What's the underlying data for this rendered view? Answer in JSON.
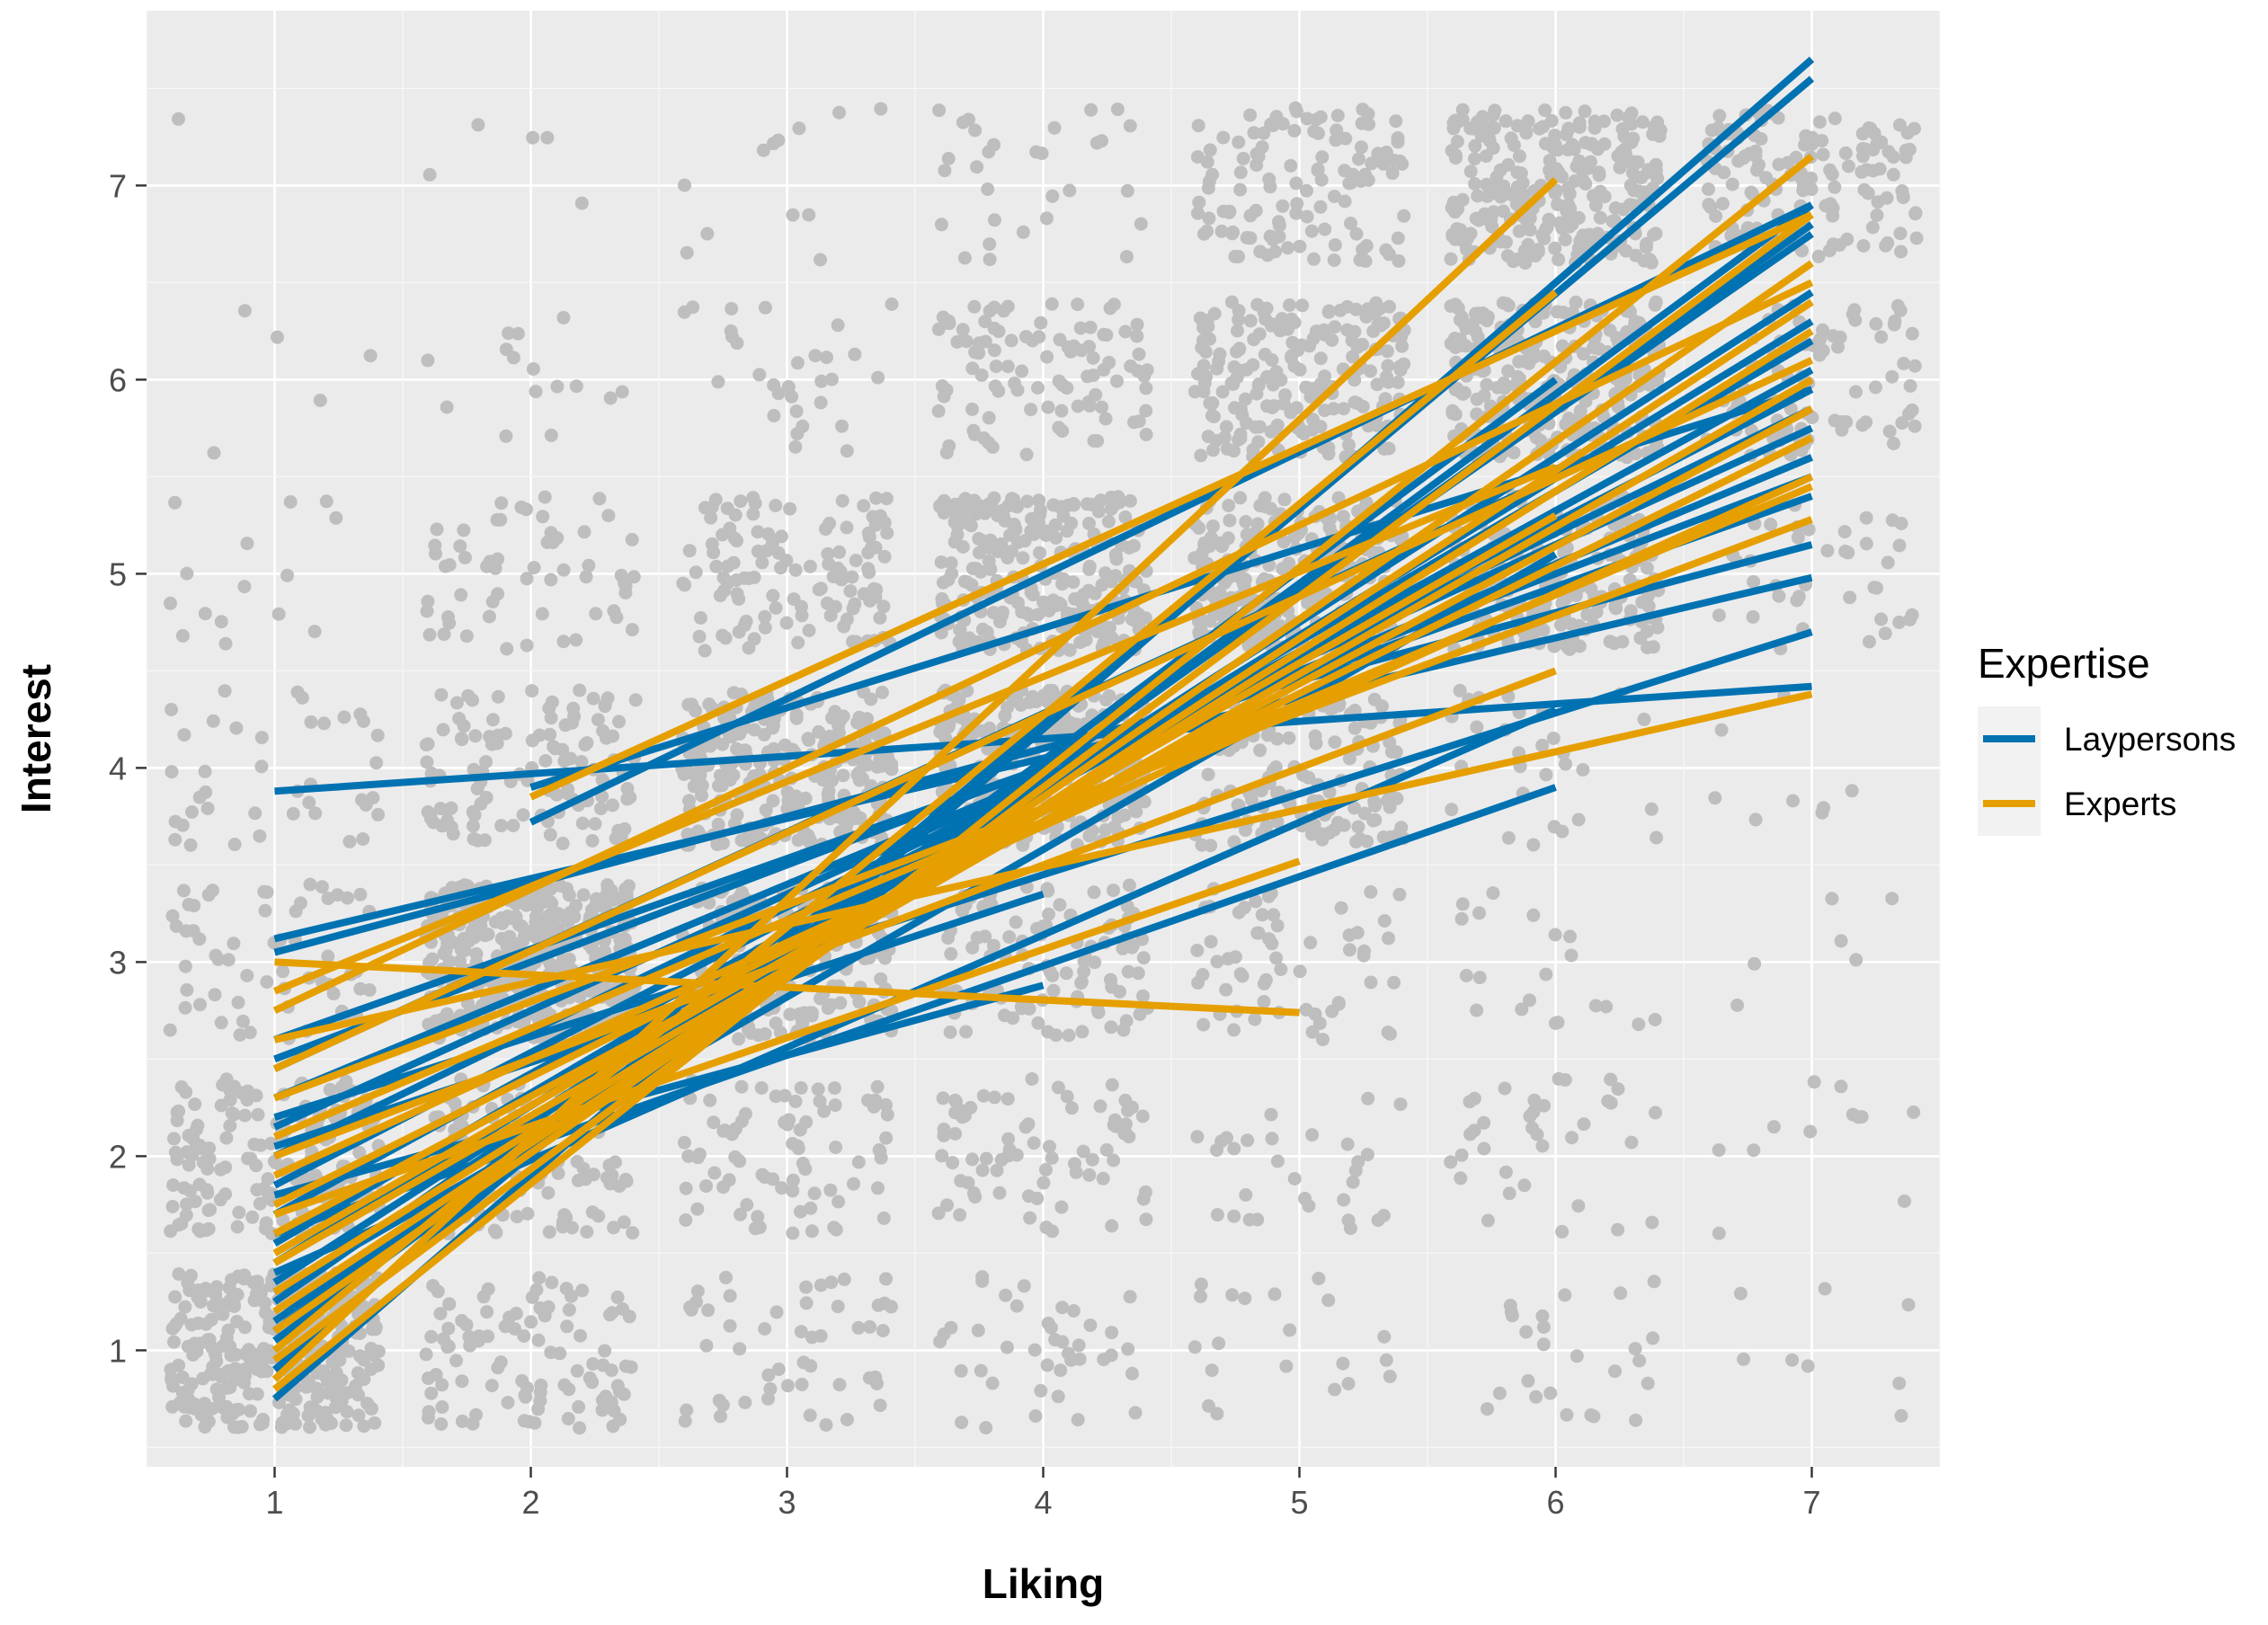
{
  "chart_data": {
    "type": "scatter",
    "xlabel": "Liking",
    "ylabel": "Interest",
    "xlim": [
      0.5,
      7.5
    ],
    "ylim": [
      0.4,
      7.9
    ],
    "x_ticks": [
      "1",
      "2",
      "3",
      "4",
      "5",
      "6",
      "7"
    ],
    "y_ticks": [
      "1",
      "2",
      "3",
      "4",
      "5",
      "6",
      "7"
    ],
    "grid": true,
    "background_color": "#EBEBEB",
    "point_color": "#BEBEBE",
    "legend": {
      "title": "Expertise",
      "position": "right",
      "entries": [
        {
          "label": "Laypersons",
          "color": "#0072B2"
        },
        {
          "label": "Experts",
          "color": "#E69F00"
        }
      ]
    },
    "scatter_note": "jittered raw ratings: cell counts by liking (1-7) x interest (1-7)",
    "cell_counts": [
      [
        320,
        100,
        50,
        40,
        20,
        25,
        8
      ],
      [
        180,
        90,
        80,
        75,
        30,
        35,
        12
      ],
      [
        60,
        420,
        200,
        100,
        60,
        20,
        6
      ],
      [
        40,
        120,
        240,
        250,
        140,
        30,
        8
      ],
      [
        15,
        60,
        120,
        250,
        250,
        180,
        40
      ],
      [
        5,
        15,
        30,
        100,
        200,
        260,
        80
      ],
      [
        1,
        5,
        12,
        30,
        120,
        260,
        140
      ]
    ],
    "series": [
      {
        "name": "Laypersons",
        "color": "#0072B2",
        "lines": [
          {
            "x": [
              1,
              7
            ],
            "y": [
              0.75,
              7.65
            ]
          },
          {
            "x": [
              1,
              7
            ],
            "y": [
              0.9,
              7.55
            ]
          },
          {
            "x": [
              1,
              7
            ],
            "y": [
              1.05,
              6.9
            ]
          },
          {
            "x": [
              1,
              7
            ],
            "y": [
              1.15,
              6.8
            ]
          },
          {
            "x": [
              1,
              7
            ],
            "y": [
              1.25,
              6.75
            ]
          },
          {
            "x": [
              1,
              7
            ],
            "y": [
              1.35,
              6.45
            ]
          },
          {
            "x": [
              1,
              7
            ],
            "y": [
              1.45,
              6.3
            ]
          },
          {
            "x": [
              1,
              7
            ],
            "y": [
              1.55,
              6.2
            ]
          },
          {
            "x": [
              1,
              7
            ],
            "y": [
              1.7,
              6.05
            ]
          },
          {
            "x": [
              1,
              7
            ],
            "y": [
              1.85,
              5.95
            ]
          },
          {
            "x": [
              1,
              7
            ],
            "y": [
              2.0,
              5.85
            ]
          },
          {
            "x": [
              1,
              7
            ],
            "y": [
              2.15,
              5.75
            ]
          },
          {
            "x": [
              1,
              7
            ],
            "y": [
              2.3,
              5.6
            ]
          },
          {
            "x": [
              1,
              7
            ],
            "y": [
              2.5,
              5.5
            ]
          },
          {
            "x": [
              1,
              7
            ],
            "y": [
              2.6,
              5.4
            ]
          },
          {
            "x": [
              1,
              7
            ],
            "y": [
              3.05,
              5.15
            ]
          },
          {
            "x": [
              1,
              7
            ],
            "y": [
              3.12,
              4.98
            ]
          },
          {
            "x": [
              1,
              7
            ],
            "y": [
              2.2,
              4.7
            ]
          },
          {
            "x": [
              1,
              7
            ],
            "y": [
              3.88,
              4.42
            ]
          },
          {
            "x": [
              1,
              6
            ],
            "y": [
              1.1,
              6.0
            ]
          },
          {
            "x": [
              1,
              6
            ],
            "y": [
              1.3,
              5.1
            ]
          },
          {
            "x": [
              1,
              6
            ],
            "y": [
              1.4,
              4.3
            ]
          },
          {
            "x": [
              1,
              6
            ],
            "y": [
              1.6,
              3.9
            ]
          },
          {
            "x": [
              1,
              6
            ],
            "y": [
              2.45,
              5.5
            ]
          },
          {
            "x": [
              2,
              7
            ],
            "y": [
              3.72,
              6.9
            ]
          },
          {
            "x": [
              2,
              7
            ],
            "y": [
              3.9,
              5.95
            ]
          },
          {
            "x": [
              1,
              4
            ],
            "y": [
              1.8,
              2.88
            ]
          },
          {
            "x": [
              1,
              4
            ],
            "y": [
              2.05,
              3.35
            ]
          }
        ]
      },
      {
        "name": "Experts",
        "color": "#E69F00",
        "lines": [
          {
            "x": [
              1,
              7
            ],
            "y": [
              0.8,
              7.15
            ]
          },
          {
            "x": [
              1,
              7
            ],
            "y": [
              0.95,
              6.85
            ]
          },
          {
            "x": [
              1,
              7
            ],
            "y": [
              1.1,
              6.6
            ]
          },
          {
            "x": [
              1,
              7
            ],
            "y": [
              1.2,
              6.4
            ]
          },
          {
            "x": [
              1,
              7
            ],
            "y": [
              1.3,
              6.25
            ]
          },
          {
            "x": [
              1,
              7
            ],
            "y": [
              1.45,
              6.0
            ]
          },
          {
            "x": [
              1,
              7
            ],
            "y": [
              1.6,
              5.85
            ]
          },
          {
            "x": [
              1,
              7
            ],
            "y": [
              1.75,
              5.7
            ]
          },
          {
            "x": [
              1,
              7
            ],
            "y": [
              1.9,
              5.5
            ]
          },
          {
            "x": [
              1,
              7
            ],
            "y": [
              2.1,
              5.45
            ]
          },
          {
            "x": [
              1,
              7
            ],
            "y": [
              2.3,
              5.28
            ]
          },
          {
            "x": [
              1,
              7
            ],
            "y": [
              2.6,
              4.38
            ]
          },
          {
            "x": [
              1,
              7
            ],
            "y": [
              2.75,
              6.5
            ]
          },
          {
            "x": [
              1,
              6
            ],
            "y": [
              0.85,
              7.03
            ]
          },
          {
            "x": [
              1,
              6
            ],
            "y": [
              1.0,
              6.45
            ]
          },
          {
            "x": [
              1,
              6
            ],
            "y": [
              1.5,
              5.3
            ]
          },
          {
            "x": [
              1,
              6
            ],
            "y": [
              2.0,
              4.5
            ]
          },
          {
            "x": [
              1,
              5
            ],
            "y": [
              1.7,
              3.52
            ]
          },
          {
            "x": [
              1,
              5
            ],
            "y": [
              3.0,
              2.74
            ]
          },
          {
            "x": [
              2,
              7
            ],
            "y": [
              3.85,
              6.85
            ]
          },
          {
            "x": [
              1,
              7
            ],
            "y": [
              2.45,
              6.1
            ]
          },
          {
            "x": [
              1,
              6
            ],
            "y": [
              2.85,
              5.55
            ]
          }
        ]
      }
    ]
  }
}
